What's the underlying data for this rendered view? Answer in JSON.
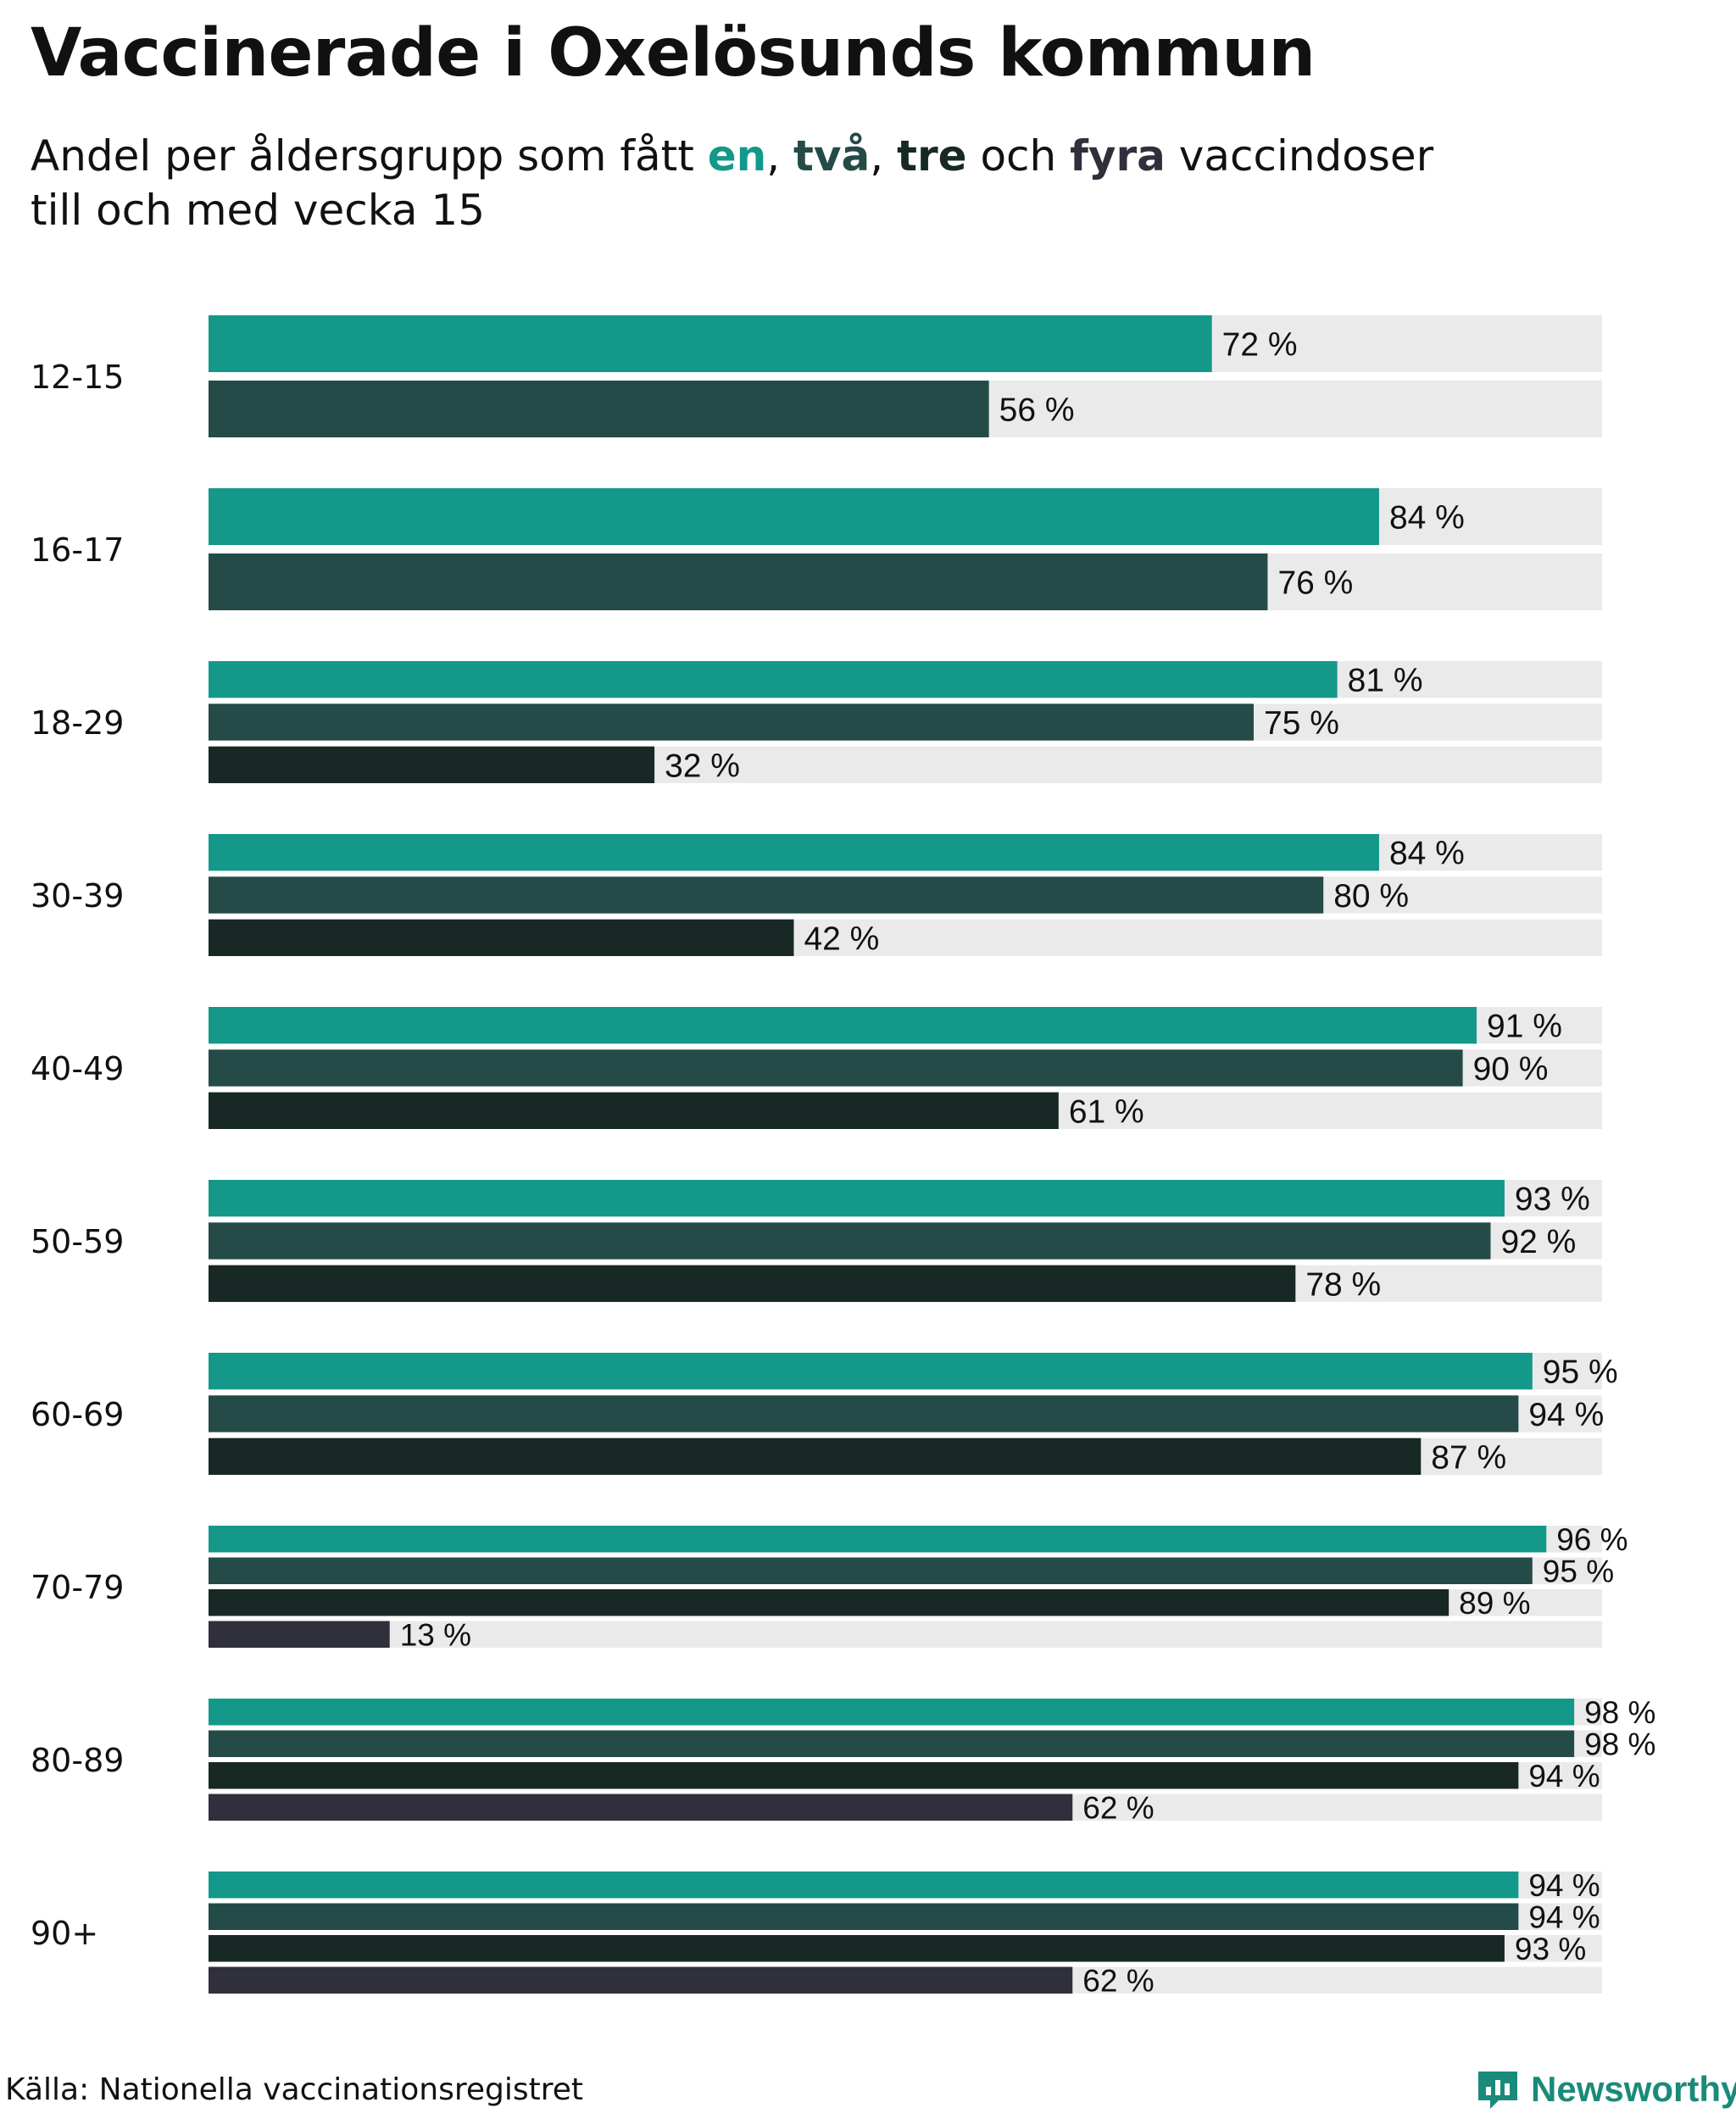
{
  "title": "Vaccinerade i Oxelösunds kommun",
  "subtitle": {
    "prefix": "Andel per åldersgrupp som fått ",
    "dose1": "en",
    "sep1": ", ",
    "dose2": "två",
    "sep2": ", ",
    "dose3": "tre",
    "mid": " och ",
    "dose4": "fyra",
    "suffix": " vaccindoser",
    "line2": "till och med vecka 15"
  },
  "colors": {
    "dose1": "#14988a",
    "dose2": "#244b48",
    "dose3": "#182825",
    "dose4": "#302f3c",
    "track": "#eaeaea",
    "brand": "#1a8a7a"
  },
  "chart_data": {
    "type": "bar",
    "orientation": "horizontal",
    "title": "Vaccinerade i Oxelösunds kommun",
    "xlim": [
      0,
      100
    ],
    "unit": "%",
    "series_names": [
      "en",
      "två",
      "tre",
      "fyra"
    ],
    "groups": [
      {
        "label": "12-15",
        "values": [
          72,
          56
        ]
      },
      {
        "label": "16-17",
        "values": [
          84,
          76
        ]
      },
      {
        "label": "18-29",
        "values": [
          81,
          75,
          32
        ]
      },
      {
        "label": "30-39",
        "values": [
          84,
          80,
          42
        ]
      },
      {
        "label": "40-49",
        "values": [
          91,
          90,
          61
        ]
      },
      {
        "label": "50-59",
        "values": [
          93,
          92,
          78
        ]
      },
      {
        "label": "60-69",
        "values": [
          95,
          94,
          87
        ]
      },
      {
        "label": "70-79",
        "values": [
          96,
          95,
          89,
          13
        ]
      },
      {
        "label": "80-89",
        "values": [
          98,
          98,
          94,
          62
        ]
      },
      {
        "label": "90+",
        "values": [
          94,
          94,
          93,
          62
        ]
      }
    ]
  },
  "source": "Källa: Nationella vaccinationsregistret",
  "brand": {
    "name": "Newsworthy",
    "logo_icon": "newsworthy-logo-icon"
  }
}
